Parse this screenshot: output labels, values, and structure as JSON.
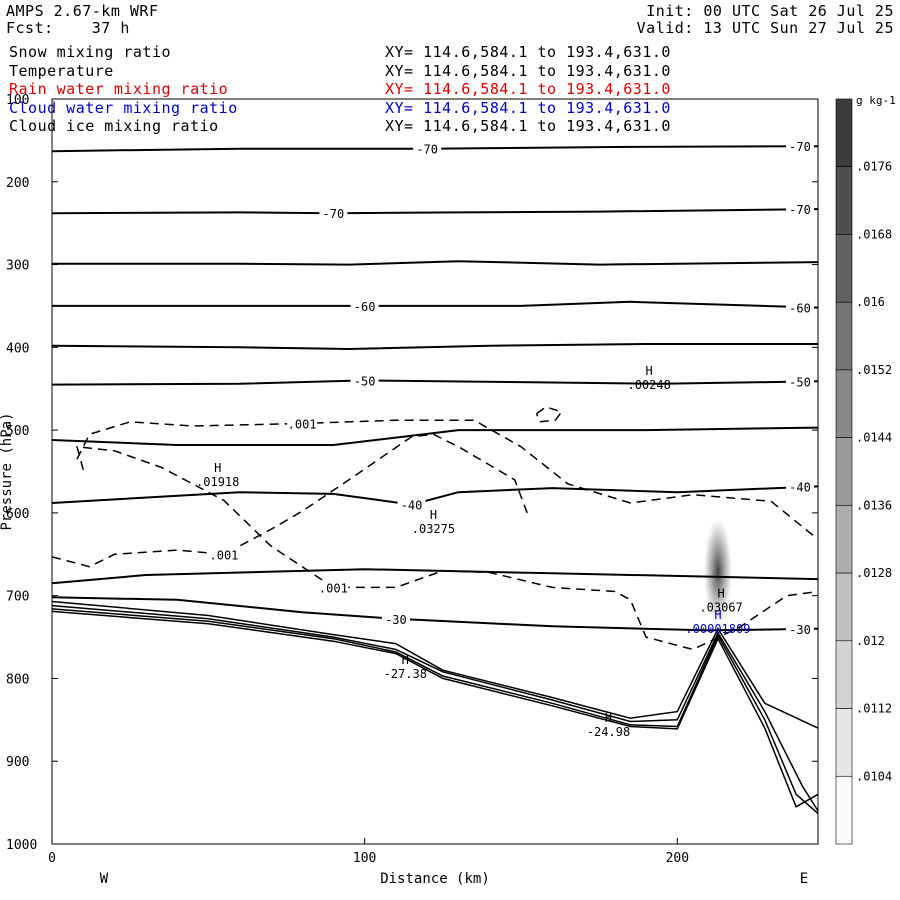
{
  "header": {
    "model": "AMPS 2.67-km WRF",
    "forecast": "Fcst:    37 h",
    "init": "Init: 00 UTC Sat 26 Jul 25",
    "valid": "Valid: 13 UTC Sun 27 Jul 25"
  },
  "fields": [
    {
      "name": "Snow mixing ratio",
      "xy": "XY= 114.6,584.1 to 193.4,631.0",
      "color": "#000000"
    },
    {
      "name": "Temperature",
      "xy": "XY= 114.6,584.1 to 193.4,631.0",
      "color": "#000000"
    },
    {
      "name": "Rain water mixing ratio",
      "xy": "XY= 114.6,584.1 to 193.4,631.0",
      "color": "#e00000"
    },
    {
      "name": "Cloud water mixing ratio",
      "xy": "XY= 114.6,584.1 to 193.4,631.0",
      "color": "#0000cc"
    },
    {
      "name": "Cloud ice mixing ratio",
      "xy": "XY= 114.6,584.1 to 193.4,631.0",
      "color": "#000000"
    }
  ],
  "chart_data": {
    "type": "cross-section",
    "xlabel": "Distance (km)",
    "ylabel": "Pressure (hPa)",
    "xlim": [
      0,
      245
    ],
    "ylim": [
      1000,
      100
    ],
    "x_ticks": [
      0,
      100,
      200
    ],
    "y_ticks": [
      100,
      200,
      300,
      400,
      500,
      600,
      700,
      800,
      900,
      1000
    ],
    "x_end_labels": [
      "W",
      "E"
    ],
    "temperature_contours": [
      {
        "label": "-70",
        "points": [
          [
            0,
            163
          ],
          [
            60,
            160
          ],
          [
            120,
            160
          ],
          [
            180,
            158
          ],
          [
            245,
            157
          ]
        ]
      },
      {
        "label": "-70",
        "points": [
          [
            0,
            238
          ],
          [
            60,
            237
          ],
          [
            90,
            238
          ],
          [
            130,
            237
          ],
          [
            175,
            236
          ],
          [
            245,
            233
          ]
        ]
      },
      {
        "label": "",
        "points": [
          [
            0,
            299
          ],
          [
            60,
            299
          ],
          [
            95,
            300
          ],
          [
            130,
            296
          ],
          [
            175,
            300
          ],
          [
            245,
            297
          ]
        ]
      },
      {
        "label": "-60",
        "points": [
          [
            0,
            350
          ],
          [
            60,
            350
          ],
          [
            100,
            350
          ],
          [
            150,
            350
          ],
          [
            185,
            345
          ],
          [
            245,
            352
          ]
        ]
      },
      {
        "label": "",
        "points": [
          [
            0,
            398
          ],
          [
            60,
            400
          ],
          [
            95,
            402
          ],
          [
            140,
            398
          ],
          [
            190,
            396
          ],
          [
            245,
            396
          ]
        ]
      },
      {
        "label": "-50",
        "points": [
          [
            0,
            445
          ],
          [
            60,
            444
          ],
          [
            100,
            440
          ],
          [
            150,
            442
          ],
          [
            195,
            444
          ],
          [
            245,
            441
          ]
        ]
      },
      {
        "label": "",
        "points": [
          [
            0,
            512
          ],
          [
            40,
            518
          ],
          [
            90,
            518
          ],
          [
            130,
            500
          ],
          [
            190,
            500
          ],
          [
            245,
            497
          ]
        ]
      },
      {
        "label": "-40",
        "points": [
          [
            0,
            588
          ],
          [
            60,
            575
          ],
          [
            90,
            577
          ],
          [
            115,
            590
          ],
          [
            130,
            575
          ],
          [
            160,
            570
          ],
          [
            200,
            575
          ],
          [
            245,
            568
          ]
        ]
      },
      {
        "label": "",
        "points": [
          [
            0,
            685
          ],
          [
            30,
            675
          ],
          [
            100,
            668
          ],
          [
            160,
            673
          ],
          [
            210,
            677
          ],
          [
            245,
            680
          ]
        ]
      },
      {
        "label": "-30",
        "points": [
          [
            0,
            702
          ],
          [
            40,
            705
          ],
          [
            80,
            720
          ],
          [
            110,
            728
          ],
          [
            160,
            737
          ],
          [
            210,
            742
          ],
          [
            245,
            740
          ]
        ]
      }
    ],
    "terrain_lines": [
      {
        "points": [
          [
            0,
            707
          ],
          [
            50,
            724
          ],
          [
            90,
            747
          ],
          [
            110,
            758
          ],
          [
            125,
            790
          ],
          [
            160,
            823
          ],
          [
            185,
            848
          ],
          [
            200,
            840
          ],
          [
            213,
            740
          ],
          [
            228,
            830
          ],
          [
            245,
            860
          ]
        ]
      },
      {
        "points": [
          [
            0,
            712
          ],
          [
            50,
            728
          ],
          [
            90,
            750
          ],
          [
            110,
            765
          ],
          [
            125,
            792
          ],
          [
            160,
            826
          ],
          [
            185,
            852
          ],
          [
            200,
            850
          ],
          [
            213,
            745
          ],
          [
            228,
            840
          ],
          [
            240,
            930
          ],
          [
            245,
            960
          ]
        ]
      },
      {
        "points": [
          [
            0,
            716
          ],
          [
            50,
            731
          ],
          [
            90,
            752
          ],
          [
            110,
            768
          ],
          [
            125,
            797
          ],
          [
            160,
            830
          ],
          [
            185,
            856
          ],
          [
            200,
            858
          ],
          [
            213,
            748
          ],
          [
            228,
            850
          ],
          [
            238,
            940
          ],
          [
            245,
            963
          ]
        ]
      },
      {
        "points": [
          [
            0,
            719
          ],
          [
            50,
            734
          ],
          [
            90,
            755
          ],
          [
            110,
            770
          ],
          [
            125,
            800
          ],
          [
            160,
            833
          ],
          [
            185,
            858
          ],
          [
            200,
            861
          ],
          [
            213,
            752
          ],
          [
            228,
            860
          ],
          [
            238,
            955
          ],
          [
            245,
            940
          ]
        ]
      }
    ],
    "cloud_ice_contours": [
      {
        "label": ".001",
        "points": [
          [
            8,
            535
          ],
          [
            12,
            505
          ],
          [
            25,
            490
          ],
          [
            45,
            495
          ],
          [
            80,
            492
          ],
          [
            110,
            488
          ],
          [
            135,
            488
          ],
          [
            150,
            520
          ],
          [
            165,
            565
          ],
          [
            185,
            588
          ],
          [
            205,
            578
          ],
          [
            230,
            586
          ],
          [
            245,
            632
          ]
        ]
      },
      {
        "label": ".001",
        "points": [
          [
            0,
            653
          ],
          [
            12,
            665
          ],
          [
            20,
            650
          ],
          [
            40,
            645
          ],
          [
            55,
            650
          ],
          [
            70,
            620
          ],
          [
            80,
            598
          ],
          [
            95,
            560
          ],
          [
            115,
            508
          ],
          [
            122,
            505
          ],
          [
            130,
            520
          ],
          [
            148,
            560
          ],
          [
            152,
            600
          ]
        ]
      },
      {
        "label": ".001",
        "points": [
          [
            10,
            548
          ],
          [
            8,
            520
          ],
          [
            20,
            525
          ],
          [
            35,
            545
          ],
          [
            55,
            585
          ],
          [
            70,
            640
          ],
          [
            90,
            690
          ],
          [
            110,
            690
          ],
          [
            125,
            670
          ],
          [
            140,
            672
          ],
          [
            160,
            690
          ],
          [
            180,
            695
          ],
          [
            185,
            705
          ],
          [
            190,
            750
          ],
          [
            205,
            765
          ],
          [
            220,
            738
          ],
          [
            235,
            700
          ],
          [
            245,
            695
          ]
        ]
      },
      {
        "label": "",
        "points": [
          [
            155,
            480
          ],
          [
            158,
            472
          ],
          [
            163,
            478
          ],
          [
            161,
            488
          ],
          [
            156,
            490
          ],
          [
            155,
            480
          ]
        ]
      }
    ],
    "maxima": [
      {
        "marker": "H",
        "value": ".00248",
        "x": 191,
        "p": 443,
        "color": "#000000"
      },
      {
        "marker": "H",
        "value": ".01918",
        "x": 53,
        "p": 560,
        "color": "#000000"
      },
      {
        "marker": "H",
        "value": ".03275",
        "x": 122,
        "p": 617,
        "color": "#000000"
      },
      {
        "marker": "H",
        "value": "-27.38",
        "x": 113,
        "p": 792,
        "color": "#000000"
      },
      {
        "marker": "H",
        "value": "-24.98",
        "x": 178,
        "p": 862,
        "color": "#000000"
      },
      {
        "marker": "H",
        "value": ".03067",
        "x": 214,
        "p": 712,
        "color": "#000000"
      },
      {
        "marker": "H",
        "value": ".00001809",
        "x": 213,
        "p": 738,
        "color": "#0000cc"
      }
    ],
    "colorbar": {
      "unit": "g kg-1",
      "levels": [
        ".0176",
        ".0168",
        ".016",
        ".0152",
        ".0144",
        ".0136",
        ".0128",
        ".012",
        ".0112",
        ".0104"
      ]
    }
  }
}
